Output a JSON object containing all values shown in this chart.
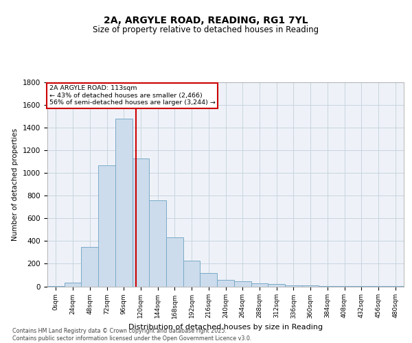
{
  "title": "2A, ARGYLE ROAD, READING, RG1 7YL",
  "subtitle": "Size of property relative to detached houses in Reading",
  "xlabel": "Distribution of detached houses by size in Reading",
  "ylabel": "Number of detached properties",
  "bar_labels": [
    "0sqm",
    "24sqm",
    "48sqm",
    "72sqm",
    "96sqm",
    "120sqm",
    "144sqm",
    "168sqm",
    "192sqm",
    "216sqm",
    "240sqm",
    "264sqm",
    "288sqm",
    "312sqm",
    "336sqm",
    "360sqm",
    "384sqm",
    "408sqm",
    "432sqm",
    "456sqm",
    "480sqm"
  ],
  "bar_values": [
    5,
    35,
    350,
    1070,
    1480,
    1130,
    760,
    435,
    225,
    120,
    55,
    45,
    30,
    20,
    8,
    8,
    5,
    5,
    3,
    2,
    1
  ],
  "bar_color": "#ccdcec",
  "bar_edge_color": "#7aaac8",
  "bar_width": 1.0,
  "ylim": [
    0,
    1800
  ],
  "yticks": [
    0,
    200,
    400,
    600,
    800,
    1000,
    1200,
    1400,
    1600,
    1800
  ],
  "property_line_color": "#cc0000",
  "annotation_text": "2A ARGYLE ROAD: 113sqm\n← 43% of detached houses are smaller (2,466)\n56% of semi-detached houses are larger (3,244) →",
  "annotation_box_color": "#cc0000",
  "grid_color": "#c8d4de",
  "background_color": "#eef2f8",
  "footer_text": "Contains HM Land Registry data © Crown copyright and database right 2025.\nContains public sector information licensed under the Open Government Licence v3.0.",
  "bin_width": 24,
  "property_sqm": 113
}
